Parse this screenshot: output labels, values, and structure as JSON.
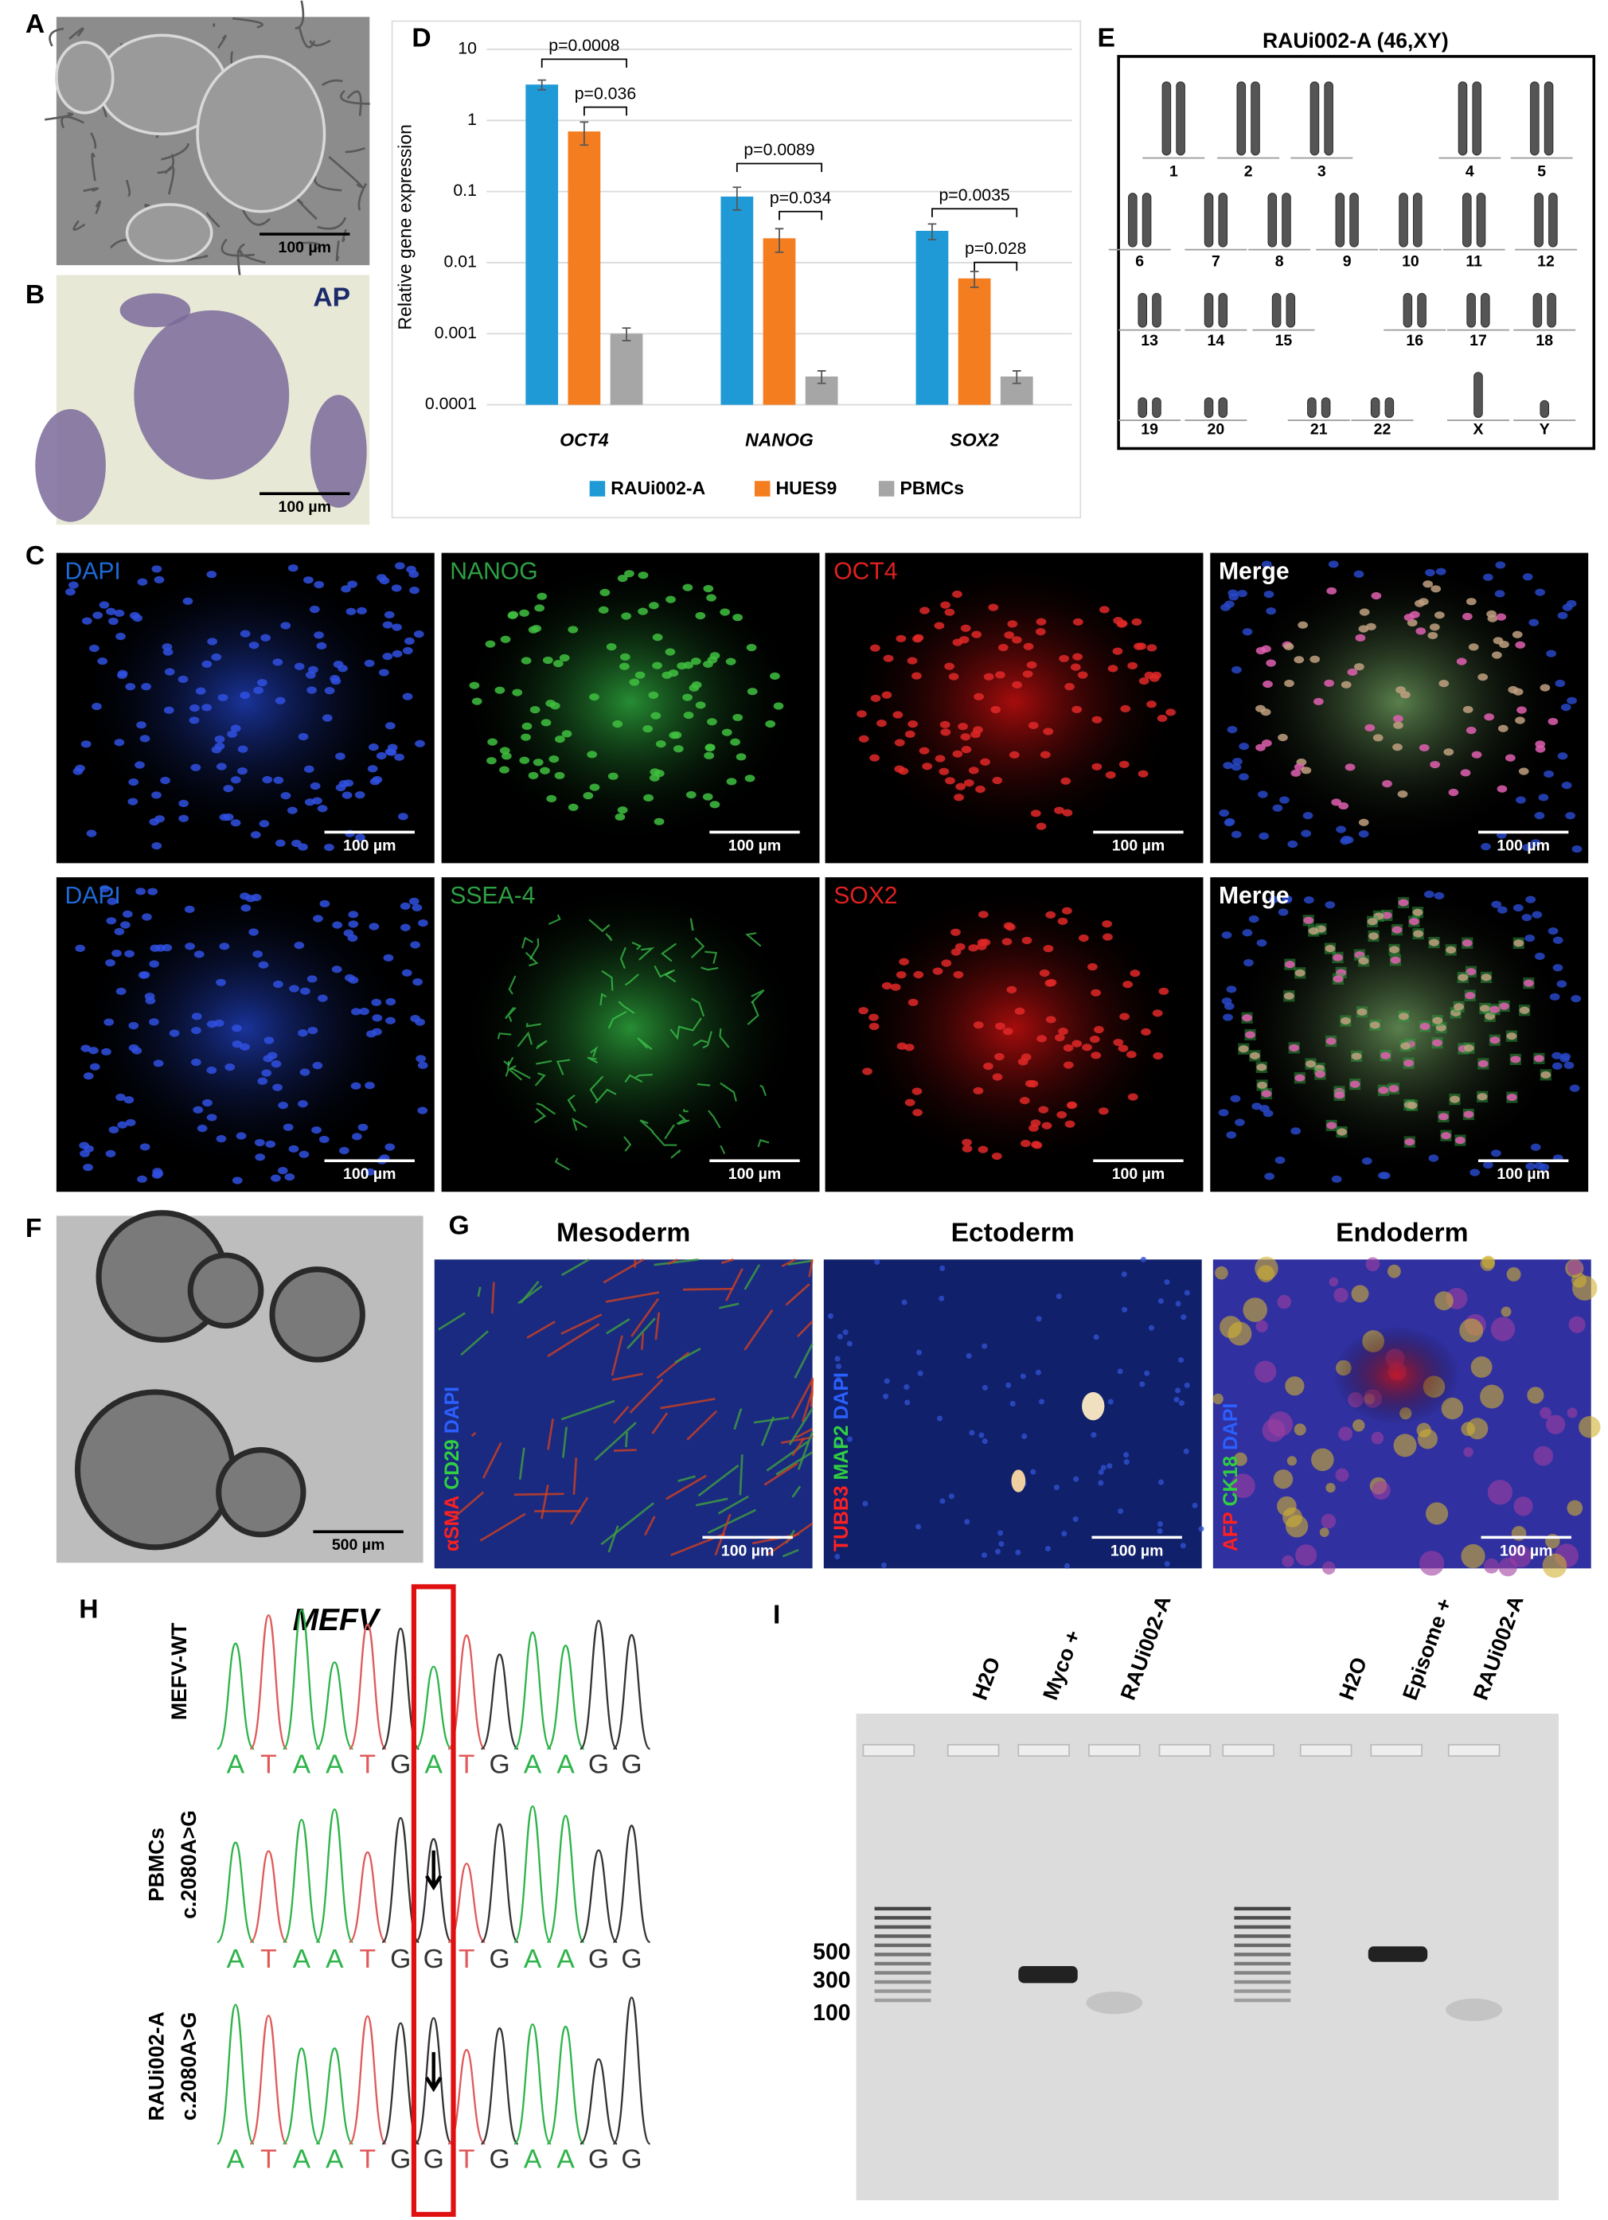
{
  "panel_letters": [
    "A",
    "B",
    "C",
    "D",
    "E",
    "F",
    "G",
    "H",
    "I"
  ],
  "panel_a": {
    "scale_bar": "100 µm"
  },
  "panel_b": {
    "label": "AP",
    "scale_bar": "100 µm"
  },
  "panel_c": {
    "rows": [
      {
        "stains": [
          "DAPI",
          "NANOG",
          "OCT4",
          "Merge"
        ]
      },
      {
        "stains": [
          "DAPI",
          "SSEA-4",
          "SOX2",
          "Merge"
        ]
      }
    ],
    "scale_bar": "100 µm"
  },
  "chart_data": {
    "type": "bar",
    "y_label": "Relative gene expression",
    "categories": [
      "OCT4",
      "NANOG",
      "SOX2"
    ],
    "series": [
      {
        "name": "RAUi002-A",
        "color": "#1f9ad6",
        "values": [
          3.2,
          0.085,
          0.028
        ],
        "errors": [
          0.5,
          0.03,
          0.007
        ]
      },
      {
        "name": "HUES9",
        "color": "#f47d20",
        "values": [
          0.7,
          0.022,
          0.006
        ],
        "errors": [
          0.25,
          0.008,
          0.0015
        ]
      },
      {
        "name": "PBMCs",
        "color": "#a6a6a6",
        "values": [
          0.001,
          0.00025,
          0.00025
        ],
        "errors": [
          0.0002,
          5e-05,
          5e-05
        ]
      }
    ],
    "log_scale": true,
    "ylim": [
      0.0001,
      10
    ],
    "yticks": [
      0.0001,
      0.001,
      0.01,
      0.1,
      1,
      10
    ],
    "grid": true,
    "legend": "bottom",
    "annotations": [
      "p=0.0008",
      "p=0.036",
      "p=0.0089",
      "p=0.034",
      "p=0.0035",
      "p=0.028"
    ]
  },
  "panel_e": {
    "title": "RAUi002-A (46,XY)",
    "chromosomes": [
      "1",
      "2",
      "3",
      "4",
      "5",
      "6",
      "7",
      "8",
      "9",
      "10",
      "11",
      "12",
      "13",
      "14",
      "15",
      "16",
      "17",
      "18",
      "19",
      "20",
      "21",
      "22",
      "X",
      "Y"
    ]
  },
  "panel_f": {
    "scale_bar": "500 µm"
  },
  "panel_g": {
    "layers": [
      {
        "title": "Mesoderm",
        "markers": [
          "αSMA",
          "CD29",
          "DAPI"
        ]
      },
      {
        "title": "Ectoderm",
        "markers": [
          "TUBB3",
          "MAP2",
          "DAPI"
        ]
      },
      {
        "title": "Endoderm",
        "markers": [
          "AFP",
          "CK18",
          "DAPI"
        ]
      }
    ],
    "scale_bar": "100 µm"
  },
  "panel_h": {
    "gene": "MEFV",
    "rows": [
      {
        "label": [
          "MEFV-WT"
        ],
        "sequence": [
          "A",
          "T",
          "A",
          "A",
          "T",
          "G",
          "A",
          "T",
          "G",
          "A",
          "A",
          "G",
          "G"
        ]
      },
      {
        "label": [
          "PBMCs",
          "c.2080A>G"
        ],
        "sequence": [
          "A",
          "T",
          "A",
          "A",
          "T",
          "G",
          "G",
          "T",
          "G",
          "A",
          "A",
          "G",
          "G"
        ]
      },
      {
        "label": [
          "RAUi002-A",
          "c.2080A>G"
        ],
        "sequence": [
          "A",
          "T",
          "A",
          "A",
          "T",
          "G",
          "G",
          "T",
          "G",
          "A",
          "A",
          "G",
          "G"
        ]
      }
    ]
  },
  "panel_i": {
    "lanes": [
      "H2O",
      "Myco +",
      "RAUi002-A",
      "H2O",
      "Episome +",
      "RAUi002-A"
    ],
    "ladder": [
      "500",
      "300",
      "100"
    ]
  }
}
